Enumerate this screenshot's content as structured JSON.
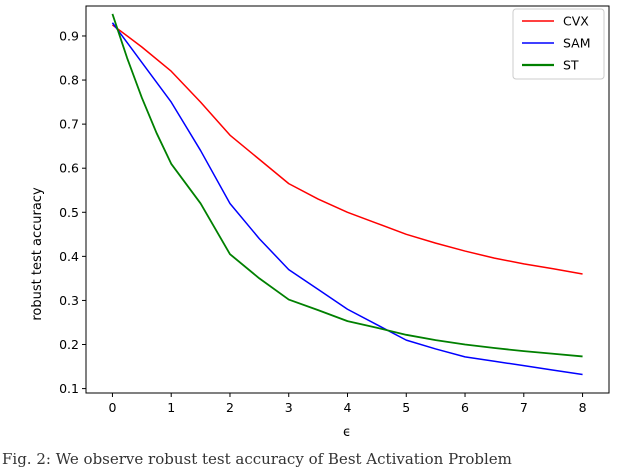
{
  "chart_data": {
    "type": "line",
    "title": "",
    "xlabel": "ϵ",
    "ylabel": "robust test accuracy",
    "xlim": [
      -0.45,
      8.45
    ],
    "ylim": [
      0.09,
      0.968
    ],
    "xticks": [
      0,
      1,
      2,
      3,
      4,
      5,
      6,
      7,
      8
    ],
    "xtick_labels": [
      "0",
      "1",
      "2",
      "3",
      "4",
      "5",
      "6",
      "7",
      "8"
    ],
    "yticks": [
      0.1,
      0.2,
      0.3,
      0.4,
      0.5,
      0.6,
      0.7,
      0.8,
      0.9
    ],
    "ytick_labels": [
      "0.1",
      "0.2",
      "0.3",
      "0.4",
      "0.5",
      "0.6",
      "0.7",
      "0.8",
      "0.9"
    ],
    "grid": false,
    "legend_position": "top-right",
    "series": [
      {
        "name": "CVX",
        "color": "#ff0000",
        "x": [
          0,
          0.5,
          1,
          1.5,
          2,
          2.5,
          3,
          3.5,
          4,
          4.5,
          5,
          5.5,
          6,
          6.5,
          7,
          7.5,
          8
        ],
        "y": [
          0.925,
          0.875,
          0.82,
          0.75,
          0.675,
          0.62,
          0.565,
          0.53,
          0.5,
          0.475,
          0.45,
          0.43,
          0.412,
          0.396,
          0.383,
          0.372,
          0.36
        ]
      },
      {
        "name": "SAM",
        "color": "#0000ff",
        "x": [
          0,
          0.5,
          1,
          1.5,
          2,
          2.5,
          3,
          3.5,
          4,
          4.5,
          5,
          5.5,
          6,
          6.5,
          7,
          7.5,
          8
        ],
        "y": [
          0.93,
          0.84,
          0.75,
          0.64,
          0.52,
          0.44,
          0.37,
          0.325,
          0.28,
          0.245,
          0.21,
          0.19,
          0.172,
          0.162,
          0.152,
          0.142,
          0.132
        ]
      },
      {
        "name": "ST",
        "color": "#008000",
        "x": [
          0,
          0.25,
          0.5,
          0.75,
          1,
          1.5,
          2,
          2.5,
          3,
          3.5,
          4,
          4.5,
          5,
          5.5,
          6,
          6.5,
          7,
          7.5,
          8
        ],
        "y": [
          0.95,
          0.85,
          0.76,
          0.68,
          0.61,
          0.52,
          0.405,
          0.35,
          0.302,
          0.278,
          0.253,
          0.238,
          0.222,
          0.21,
          0.2,
          0.192,
          0.185,
          0.179,
          0.173
        ]
      }
    ]
  },
  "caption": {
    "text": "Fig. 2: We observe robust test accuracy of Best Activation Problem"
  }
}
